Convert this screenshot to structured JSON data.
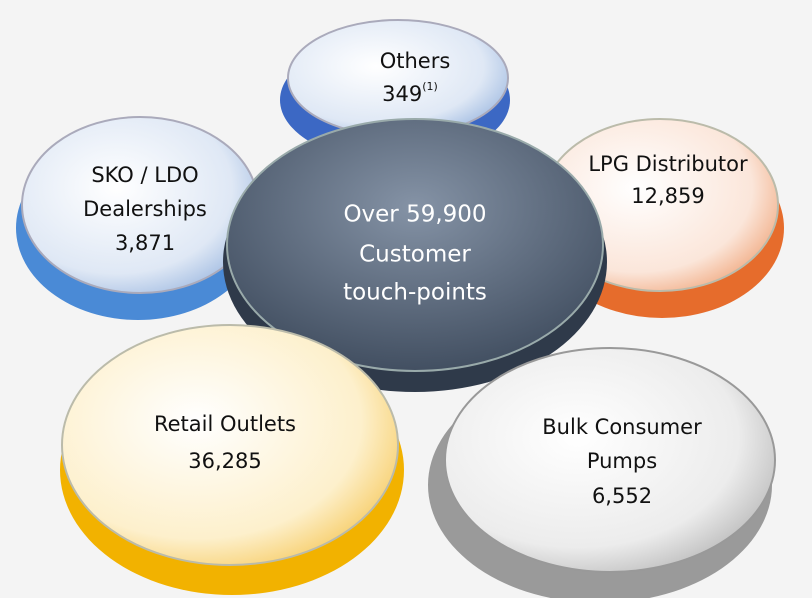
{
  "center": {
    "lines": [
      "Over 59,900",
      "Customer",
      "touch-points"
    ]
  },
  "nodes": [
    {
      "label_lines": [
        "Others"
      ],
      "value": "349",
      "note": "(1)"
    },
    {
      "label_lines": [
        "LPG Distributor"
      ],
      "value": "12,859"
    },
    {
      "label_lines": [
        "SKO / LDO",
        "Dealerships"
      ],
      "value": "3,871"
    },
    {
      "label_lines": [
        "Retail Outlets"
      ],
      "value": "36,285"
    },
    {
      "label_lines": [
        "Bulk Consumer",
        "Pumps"
      ],
      "value": "6,552"
    }
  ]
}
